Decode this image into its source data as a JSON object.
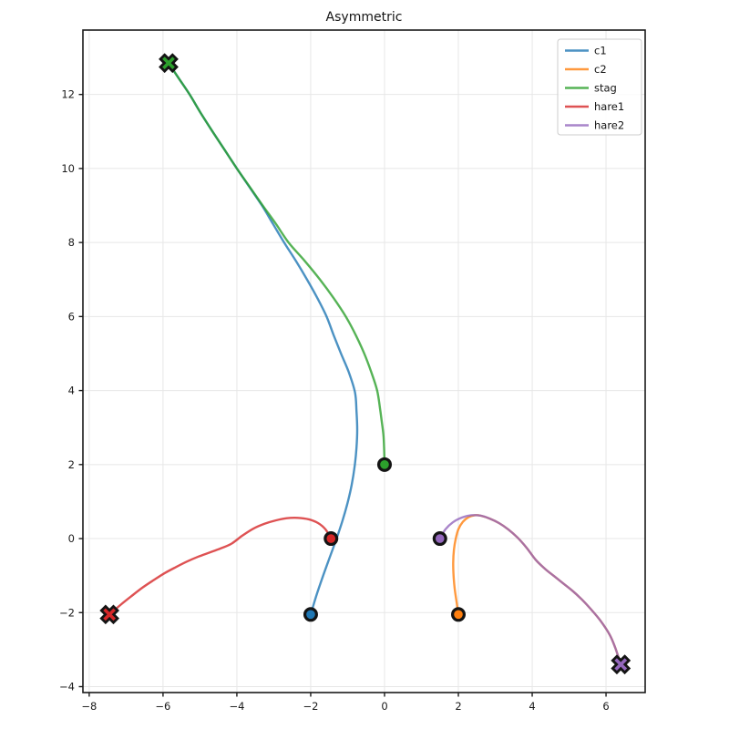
{
  "chart_data": {
    "type": "line",
    "title": "Asymmetric",
    "xlim": [
      -8.17,
      7.06
    ],
    "ylim": [
      -4.16,
      13.74
    ],
    "xticks": [
      -8,
      -6,
      -4,
      -2,
      0,
      2,
      4,
      6
    ],
    "yticks": [
      -4,
      -2,
      0,
      2,
      4,
      6,
      8,
      10,
      12
    ],
    "grid": true,
    "legend_position": "upper right",
    "style": {
      "line_opacity": 0.8,
      "line_width": 2.4,
      "grid_color": "#e7e7e7",
      "spine_color": "#1a1a1a",
      "tick_label_color": "#1a1a1a",
      "marker_edge_color": "#141414",
      "legend_border_color": "#cccccc",
      "legend_bg": "rgba(255,255,255,0.85)"
    },
    "markers": {
      "start": "circle",
      "end": "X"
    },
    "series": [
      {
        "name": "c1",
        "color": "#1f77b4",
        "start": [
          -2,
          -2.05
        ],
        "end": [
          -5.85,
          12.85
        ],
        "points": [
          [
            -2,
            -2.05
          ],
          [
            -1.85,
            -1.55
          ],
          [
            -1.68,
            -1.05
          ],
          [
            -1.5,
            -0.55
          ],
          [
            -1.31,
            -0.03
          ],
          [
            -1.14,
            0.48
          ],
          [
            -1.0,
            0.97
          ],
          [
            -0.89,
            1.45
          ],
          [
            -0.81,
            1.95
          ],
          [
            -0.76,
            2.45
          ],
          [
            -0.74,
            2.95
          ],
          [
            -0.76,
            3.45
          ],
          [
            -0.8,
            3.95
          ],
          [
            -0.97,
            4.5
          ],
          [
            -1.18,
            5.0
          ],
          [
            -1.38,
            5.5
          ],
          [
            -1.57,
            6.0
          ],
          [
            -1.82,
            6.5
          ],
          [
            -2.1,
            7.0
          ],
          [
            -2.4,
            7.5
          ],
          [
            -2.72,
            8.0
          ],
          [
            -3.02,
            8.5
          ],
          [
            -3.32,
            9.0
          ],
          [
            -3.66,
            9.5
          ],
          [
            -4.0,
            10.0
          ],
          [
            -4.33,
            10.5
          ],
          [
            -4.66,
            11.0
          ],
          [
            -4.98,
            11.5
          ],
          [
            -5.28,
            12.0
          ],
          [
            -5.57,
            12.43
          ],
          [
            -5.85,
            12.85
          ]
        ]
      },
      {
        "name": "c2",
        "color": "#ff7f0e",
        "start": [
          2,
          -2.05
        ],
        "end": [
          6.4,
          -3.4
        ],
        "points": [
          [
            2,
            -2.05
          ],
          [
            1.95,
            -1.7
          ],
          [
            1.9,
            -1.35
          ],
          [
            1.87,
            -1.0
          ],
          [
            1.86,
            -0.65
          ],
          [
            1.88,
            -0.3
          ],
          [
            1.93,
            0.0
          ],
          [
            2.0,
            0.25
          ],
          [
            2.12,
            0.45
          ],
          [
            2.28,
            0.58
          ],
          [
            2.45,
            0.63
          ],
          [
            2.6,
            0.62
          ],
          [
            2.85,
            0.54
          ],
          [
            3.1,
            0.42
          ],
          [
            3.35,
            0.25
          ],
          [
            3.6,
            0.03
          ],
          [
            3.85,
            -0.25
          ],
          [
            4.1,
            -0.58
          ],
          [
            4.35,
            -0.82
          ],
          [
            4.6,
            -1.02
          ],
          [
            4.85,
            -1.22
          ],
          [
            5.1,
            -1.42
          ],
          [
            5.35,
            -1.65
          ],
          [
            5.6,
            -1.92
          ],
          [
            5.85,
            -2.22
          ],
          [
            6.1,
            -2.6
          ],
          [
            6.25,
            -2.95
          ],
          [
            6.4,
            -3.4
          ]
        ]
      },
      {
        "name": "stag",
        "color": "#2ca02c",
        "start": [
          0,
          2
        ],
        "end": [
          -5.85,
          12.85
        ],
        "points": [
          [
            0,
            2
          ],
          [
            -0.01,
            2.4
          ],
          [
            -0.03,
            2.8
          ],
          [
            -0.08,
            3.2
          ],
          [
            -0.12,
            3.5
          ],
          [
            -0.2,
            4.0
          ],
          [
            -0.36,
            4.5
          ],
          [
            -0.55,
            5.0
          ],
          [
            -0.78,
            5.5
          ],
          [
            -1.05,
            6.0
          ],
          [
            -1.38,
            6.5
          ],
          [
            -1.75,
            7.0
          ],
          [
            -2.16,
            7.5
          ],
          [
            -2.6,
            8.0
          ],
          [
            -2.94,
            8.5
          ],
          [
            -3.3,
            9.0
          ],
          [
            -3.65,
            9.5
          ],
          [
            -4.0,
            10.0
          ],
          [
            -4.33,
            10.5
          ],
          [
            -4.66,
            11.0
          ],
          [
            -4.98,
            11.5
          ],
          [
            -5.28,
            12.0
          ],
          [
            -5.57,
            12.43
          ],
          [
            -5.85,
            12.85
          ]
        ]
      },
      {
        "name": "hare1",
        "color": "#d62728",
        "start": [
          -1.45,
          0
        ],
        "end": [
          -7.45,
          -2.05
        ],
        "points": [
          [
            -1.45,
            0
          ],
          [
            -1.6,
            0.25
          ],
          [
            -1.8,
            0.42
          ],
          [
            -2.05,
            0.52
          ],
          [
            -2.35,
            0.56
          ],
          [
            -2.65,
            0.55
          ],
          [
            -2.95,
            0.49
          ],
          [
            -3.25,
            0.4
          ],
          [
            -3.55,
            0.27
          ],
          [
            -3.85,
            0.08
          ],
          [
            -4.15,
            -0.14
          ],
          [
            -4.45,
            -0.27
          ],
          [
            -4.75,
            -0.38
          ],
          [
            -5.05,
            -0.49
          ],
          [
            -5.35,
            -0.62
          ],
          [
            -5.65,
            -0.77
          ],
          [
            -5.95,
            -0.93
          ],
          [
            -6.25,
            -1.12
          ],
          [
            -6.55,
            -1.32
          ],
          [
            -6.85,
            -1.55
          ],
          [
            -7.15,
            -1.79
          ],
          [
            -7.45,
            -2.05
          ]
        ]
      },
      {
        "name": "hare2",
        "color": "#9467bd",
        "start": [
          1.5,
          0
        ],
        "end": [
          6.4,
          -3.4
        ],
        "points": [
          [
            1.5,
            0
          ],
          [
            1.65,
            0.25
          ],
          [
            1.85,
            0.44
          ],
          [
            2.1,
            0.57
          ],
          [
            2.35,
            0.63
          ],
          [
            2.6,
            0.62
          ],
          [
            2.85,
            0.54
          ],
          [
            3.1,
            0.42
          ],
          [
            3.35,
            0.25
          ],
          [
            3.6,
            0.03
          ],
          [
            3.85,
            -0.25
          ],
          [
            4.1,
            -0.58
          ],
          [
            4.35,
            -0.82
          ],
          [
            4.6,
            -1.02
          ],
          [
            4.85,
            -1.22
          ],
          [
            5.1,
            -1.42
          ],
          [
            5.35,
            -1.65
          ],
          [
            5.6,
            -1.92
          ],
          [
            5.85,
            -2.22
          ],
          [
            6.1,
            -2.6
          ],
          [
            6.25,
            -2.95
          ],
          [
            6.4,
            -3.4
          ]
        ]
      }
    ],
    "legend": {
      "entries": [
        "c1",
        "c2",
        "stag",
        "hare1",
        "hare2"
      ]
    }
  }
}
